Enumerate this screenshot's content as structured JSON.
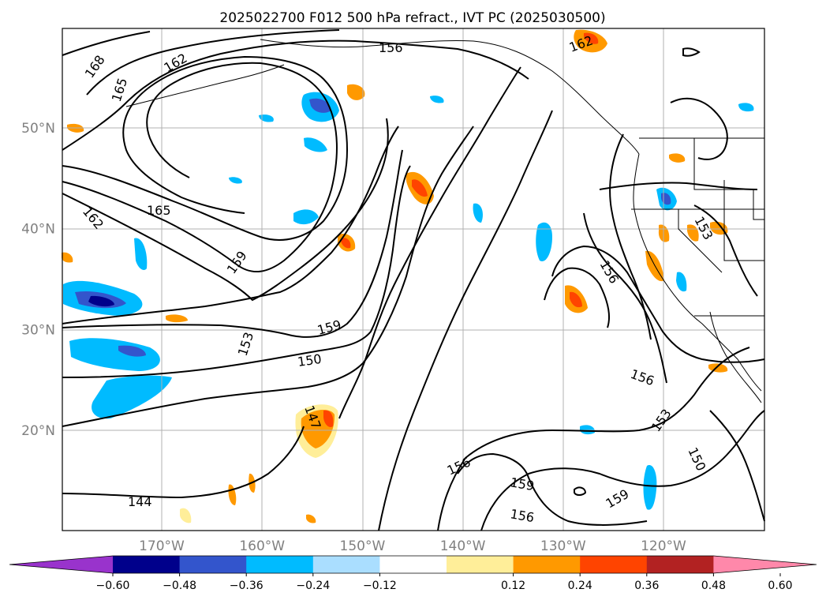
{
  "title": "2025022700 F012 500 hPa refract., IVT PC (2025030500)",
  "map": {
    "lat_ticks": [
      {
        "value": 50,
        "label": "50°N"
      },
      {
        "value": 40,
        "label": "40°N"
      },
      {
        "value": 30,
        "label": "30°N"
      },
      {
        "value": 20,
        "label": "20°N"
      }
    ],
    "lon_ticks": [
      {
        "value": -170,
        "label": "170°W"
      },
      {
        "value": -160,
        "label": "160°W"
      },
      {
        "value": -150,
        "label": "150°W"
      },
      {
        "value": -140,
        "label": "140°W"
      },
      {
        "value": -130,
        "label": "130°W"
      },
      {
        "value": -120,
        "label": "120°W"
      }
    ],
    "tick_label_color": "#808080",
    "grid": true
  },
  "contour_labels": [
    "168",
    "165",
    "162",
    "156",
    "165",
    "162",
    "159",
    "153",
    "159",
    "150",
    "147",
    "144",
    "156",
    "159",
    "156",
    "162",
    "153",
    "156",
    "156",
    "153",
    "150",
    "159"
  ],
  "colorbar": {
    "colors": [
      "#9933cc",
      "#00008b",
      "#3355cc",
      "#00bbff",
      "#aadeff",
      "#ffffff",
      "#ffee99",
      "#ff9900",
      "#ff4400",
      "#b22222",
      "#ff88aa"
    ],
    "tick_labels": [
      "−0.60",
      "−0.48",
      "−0.36",
      "−0.24",
      "−0.12",
      "0.12",
      "0.24",
      "0.36",
      "0.48",
      "0.60"
    ]
  }
}
